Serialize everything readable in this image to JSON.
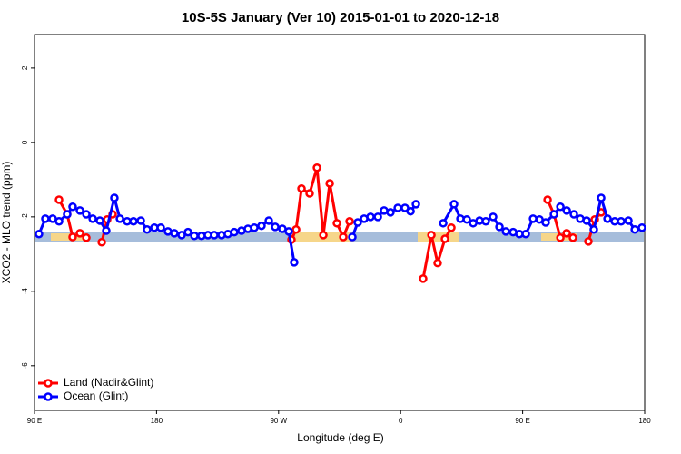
{
  "chart_data": {
    "type": "line",
    "title": "10S-5S January (Ver 10)   2015-01-01 to 2020-12-18",
    "xlabel": "Longitude (deg E)",
    "ylabel": "XCO2 - MLO trend (ppm)",
    "xlim": [
      90,
      540
    ],
    "ylim": [
      -7.2,
      2.9
    ],
    "xticks": [
      {
        "value": 90,
        "label": "90 E"
      },
      180,
      {
        "value": 270,
        "label": "90 W"
      },
      {
        "value": 360,
        "label": "0"
      },
      {
        "value": 450,
        "label": "90 E"
      },
      {
        "value": 540,
        "label": "180"
      }
    ],
    "yticks": [
      2,
      0,
      -2,
      -4,
      -6
    ],
    "legend": "bottom-left",
    "series": [
      {
        "name": "Land (Nadir&Glint)",
        "color": "#ff0000",
        "x": [
          108.1,
          114.1,
          118.1,
          123.5,
          128.2,
          null,
          139.6,
          143.6,
          147.6,
          null,
          279.5,
          282.9,
          286.9,
          292.9,
          298.3,
          303,
          307.7,
          313,
          317.7,
          322.4,
          null,
          376.6,
          382.7,
          387.3,
          392.7,
          397.4,
          null,
          468.4,
          473.1,
          477.8,
          482.5,
          487.1,
          null,
          498.5,
          503.2,
          507.9
        ],
        "values": [
          -1.54,
          -1.93,
          -2.54,
          -2.44,
          -2.56,
          null,
          -2.68,
          -2.07,
          -1.93,
          null,
          -2.61,
          -2.34,
          -1.24,
          -1.37,
          -0.68,
          -2.49,
          -1.1,
          -2.17,
          -2.54,
          -2.12,
          null,
          -3.66,
          -2.49,
          -3.24,
          -2.59,
          -2.29,
          null,
          -1.54,
          -1.93,
          -2.56,
          -2.44,
          -2.56,
          null,
          -2.66,
          -2.07,
          -1.88
        ]
      },
      {
        "name": "Ocean (Glint)",
        "color": "#0000ff",
        "x": [
          93.3,
          98,
          103.4,
          108.1,
          114.1,
          118.1,
          123.5,
          128.2,
          132.9,
          138.2,
          142.9,
          148.9,
          153,
          158.3,
          163,
          168.4,
          173,
          178.4,
          183.1,
          188.4,
          193.1,
          198.5,
          203.2,
          207.9,
          213.2,
          217.9,
          222.6,
          228,
          232.6,
          237.3,
          242.7,
          247.4,
          252.1,
          257.4,
          262.8,
          267.5,
          272.8,
          277.5,
          281.5,
          null,
          324.4,
          328.4,
          333.1,
          337.8,
          343.2,
          347.8,
          352.5,
          357.9,
          363.2,
          367.3,
          371.3,
          null,
          391.4,
          399.4,
          404.1,
          408.8,
          413.5,
          418.2,
          422.8,
          428.2,
          432.9,
          437.6,
          443,
          447.6,
          452.3,
          457.7,
          462.4,
          467,
          473.1,
          477.8,
          482.5,
          487.8,
          492.5,
          497.2,
          502.5,
          507.9,
          512.6,
          517.9,
          522.6,
          528,
          532.7,
          538
        ],
        "values": [
          -2.46,
          -2.05,
          -2.05,
          -2.12,
          -1.93,
          -1.73,
          -1.83,
          -1.93,
          -2.05,
          -2.1,
          -2.37,
          -1.49,
          -2.05,
          -2.12,
          -2.12,
          -2.1,
          -2.34,
          -2.29,
          -2.29,
          -2.39,
          -2.44,
          -2.49,
          -2.41,
          -2.51,
          -2.51,
          -2.49,
          -2.49,
          -2.49,
          -2.46,
          -2.41,
          -2.37,
          -2.32,
          -2.29,
          -2.24,
          -2.1,
          -2.27,
          -2.32,
          -2.39,
          -3.22,
          null,
          -2.54,
          -2.15,
          -2.05,
          -2,
          -2,
          -1.83,
          -1.88,
          -1.76,
          -1.76,
          -1.85,
          -1.66,
          null,
          -2.17,
          -1.66,
          -2.05,
          -2.07,
          -2.17,
          -2.1,
          -2.12,
          -2,
          -2.27,
          -2.39,
          -2.41,
          -2.46,
          -2.46,
          -2.05,
          -2.07,
          -2.15,
          -1.93,
          -1.73,
          -1.83,
          -1.93,
          -2.05,
          -2.1,
          -2.34,
          -1.49,
          -2.05,
          -2.12,
          -2.12,
          -2.1,
          -2.34,
          -2.29
        ]
      }
    ]
  }
}
